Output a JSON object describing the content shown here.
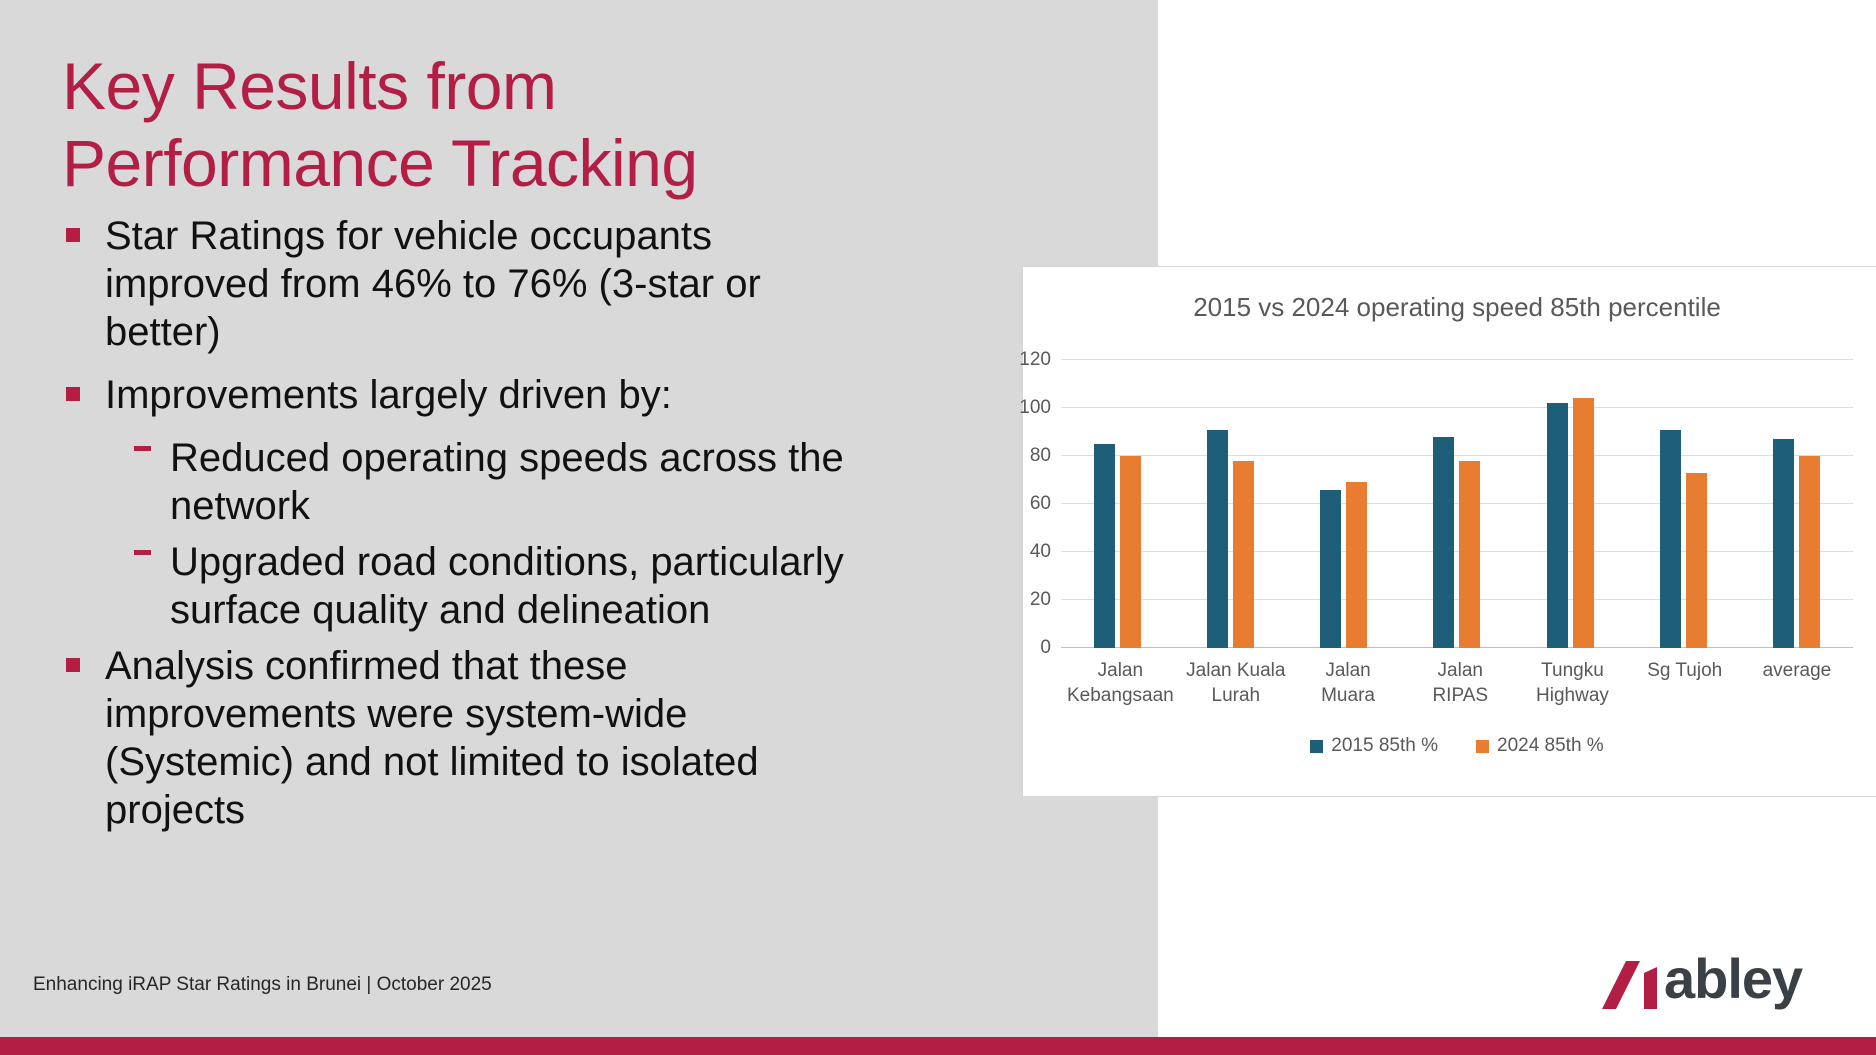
{
  "slide": {
    "title_lines": [
      "Key Results from",
      "Performance Tracking"
    ],
    "bullets": [
      {
        "level": 1,
        "lines": [
          "Star Ratings for vehicle occupants",
          "improved from 46% to 76% (3-star or",
          "better)"
        ]
      },
      {
        "level": 1,
        "lines": [
          "Improvements largely driven by:"
        ]
      },
      {
        "level": 2,
        "lines": [
          "Reduced operating speeds across the",
          "network"
        ]
      },
      {
        "level": 2,
        "lines": [
          "Upgraded road conditions, particularly",
          "surface quality and delineation"
        ]
      },
      {
        "level": 1,
        "lines": [
          "Analysis confirmed that these",
          "improvements were system-wide",
          "(Systemic) and not limited to isolated",
          "projects"
        ]
      }
    ],
    "footer": "Enhancing iRAP Star Ratings in Brunei | October 2025",
    "logo": {
      "text": "abley"
    }
  },
  "colors": {
    "accent_crimson": "#B31E45",
    "slide_gray": "#D9D9D9",
    "logo_charcoal": "#3B4046",
    "series_2015_blue": "#1F5E78",
    "series_2024_orange": "#E87D31"
  },
  "chart_data": {
    "type": "bar",
    "title": "2015 vs 2024 operating speed 85th percentile",
    "categories": [
      "Jalan Kebangsaan",
      "Jalan Kuala Lurah",
      "Jalan Muara",
      "Jalan RIPAS",
      "Tungku Highway",
      "Sg Tujoh",
      "average"
    ],
    "series": [
      {
        "name": "2015 85th %",
        "color": "#1F5E78",
        "values": [
          85,
          91,
          66,
          88,
          102,
          91,
          87
        ]
      },
      {
        "name": "2024 85th %",
        "color": "#E87D31",
        "values": [
          80,
          78,
          69,
          78,
          104,
          73,
          80
        ]
      }
    ],
    "xlabel": "",
    "ylabel": "",
    "ylim": [
      0,
      120
    ],
    "ytick_step": 20,
    "grid": true,
    "legend_position": "bottom"
  }
}
